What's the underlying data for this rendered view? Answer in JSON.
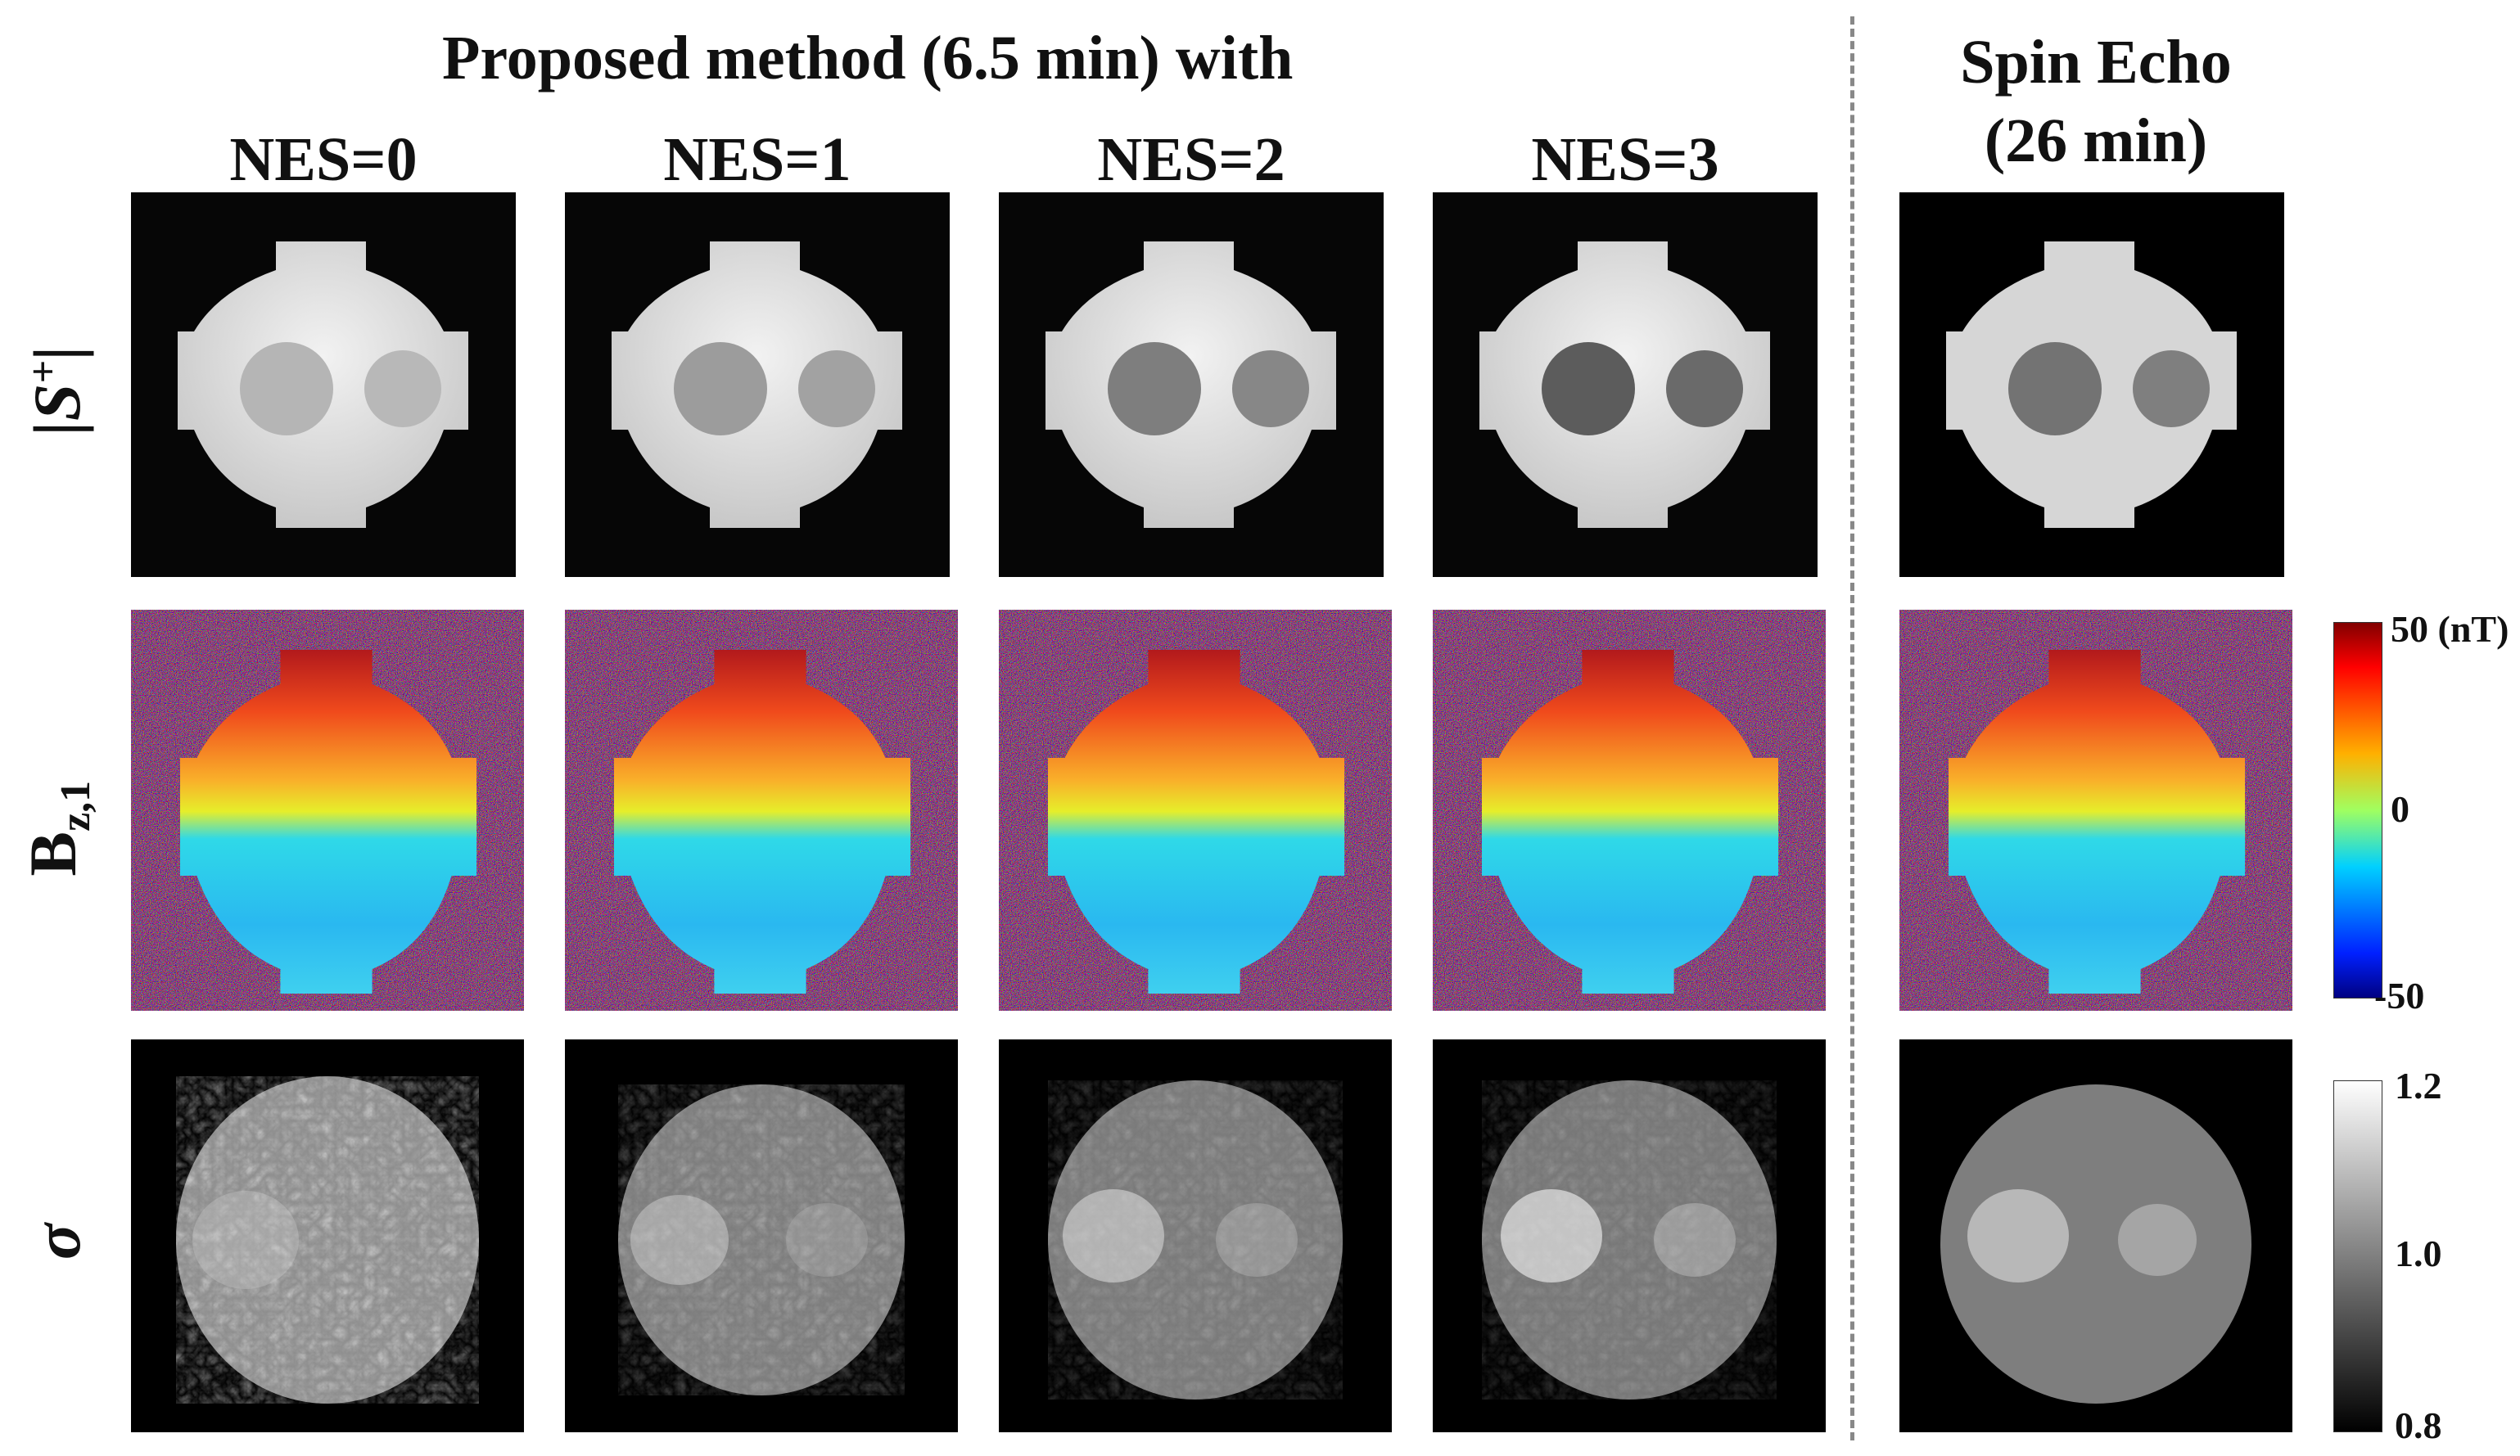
{
  "header": {
    "title": "Proposed method (6.5 min) with",
    "reference_title_line1": "Spin Echo",
    "reference_title_line2": "(26 min)"
  },
  "columns": [
    {
      "label": "NES=0"
    },
    {
      "label": "NES=1"
    },
    {
      "label": "NES=2"
    },
    {
      "label": "NES=3"
    }
  ],
  "rows": {
    "magnitude_label_main": "|S",
    "magnitude_label_sup": "+",
    "magnitude_label_end": "|",
    "bz_label_main": "B",
    "bz_label_sub": "z,1",
    "sigma_label": "σ"
  },
  "colorbars": {
    "bz": {
      "max_label": "50 (nT)",
      "mid_label": "0",
      "min_label": "-50"
    },
    "sigma": {
      "max_label": "1.2",
      "mid_label": "1.0",
      "min_label": "0.8"
    }
  },
  "colors": {
    "background": "#ffffff",
    "panel_black": "#000000",
    "divider": "#888888"
  }
}
